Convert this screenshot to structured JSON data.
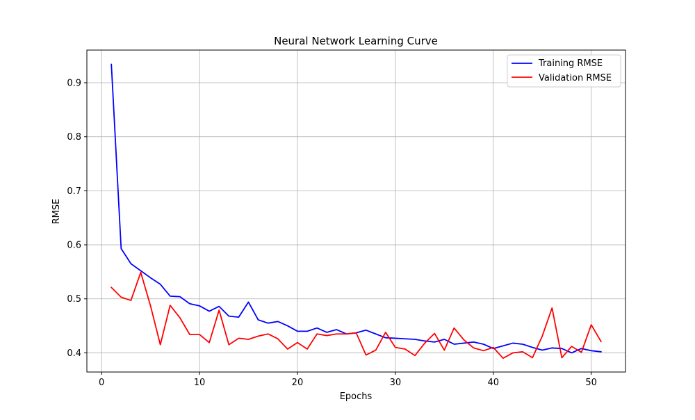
{
  "chart_data": {
    "type": "line",
    "title": "Neural Network Learning Curve",
    "xlabel": "Epochs",
    "ylabel": "RMSE",
    "xlim": [
      -1.5,
      53.5
    ],
    "ylim": [
      0.3645,
      0.9605
    ],
    "xticks": [
      0,
      10,
      20,
      30,
      40,
      50
    ],
    "yticks": [
      0.4,
      0.5,
      0.6,
      0.7,
      0.8,
      0.9
    ],
    "ytick_labels": [
      "0.4",
      "0.5",
      "0.6",
      "0.7",
      "0.8",
      "0.9"
    ],
    "grid": true,
    "legend_position": "top-right",
    "x": [
      1,
      2,
      3,
      4,
      5,
      6,
      7,
      8,
      9,
      10,
      11,
      12,
      13,
      14,
      15,
      16,
      17,
      18,
      19,
      20,
      21,
      22,
      23,
      24,
      25,
      26,
      27,
      28,
      29,
      30,
      31,
      32,
      33,
      34,
      35,
      36,
      37,
      38,
      39,
      40,
      41,
      42,
      43,
      44,
      45,
      46,
      47,
      48,
      49,
      50,
      51
    ],
    "series": [
      {
        "name": "Training RMSE",
        "color": "#0000ff",
        "values": [
          0.934,
          0.593,
          0.565,
          0.552,
          0.539,
          0.527,
          0.505,
          0.504,
          0.491,
          0.487,
          0.477,
          0.486,
          0.468,
          0.466,
          0.494,
          0.461,
          0.455,
          0.458,
          0.45,
          0.44,
          0.44,
          0.446,
          0.438,
          0.443,
          0.435,
          0.437,
          0.442,
          0.435,
          0.428,
          0.427,
          0.426,
          0.425,
          0.422,
          0.42,
          0.425,
          0.416,
          0.418,
          0.42,
          0.416,
          0.408,
          0.413,
          0.418,
          0.416,
          0.41,
          0.405,
          0.409,
          0.408,
          0.4,
          0.408,
          0.404,
          0.402
        ]
      },
      {
        "name": "Validation RMSE",
        "color": "#ff0000",
        "values": [
          0.521,
          0.503,
          0.497,
          0.549,
          0.487,
          0.415,
          0.488,
          0.465,
          0.434,
          0.434,
          0.419,
          0.479,
          0.415,
          0.427,
          0.425,
          0.431,
          0.435,
          0.426,
          0.407,
          0.419,
          0.407,
          0.435,
          0.432,
          0.435,
          0.435,
          0.437,
          0.396,
          0.405,
          0.438,
          0.41,
          0.407,
          0.395,
          0.418,
          0.436,
          0.405,
          0.446,
          0.424,
          0.409,
          0.404,
          0.41,
          0.39,
          0.4,
          0.402,
          0.391,
          0.431,
          0.483,
          0.391,
          0.412,
          0.401,
          0.452,
          0.421
        ]
      }
    ]
  }
}
